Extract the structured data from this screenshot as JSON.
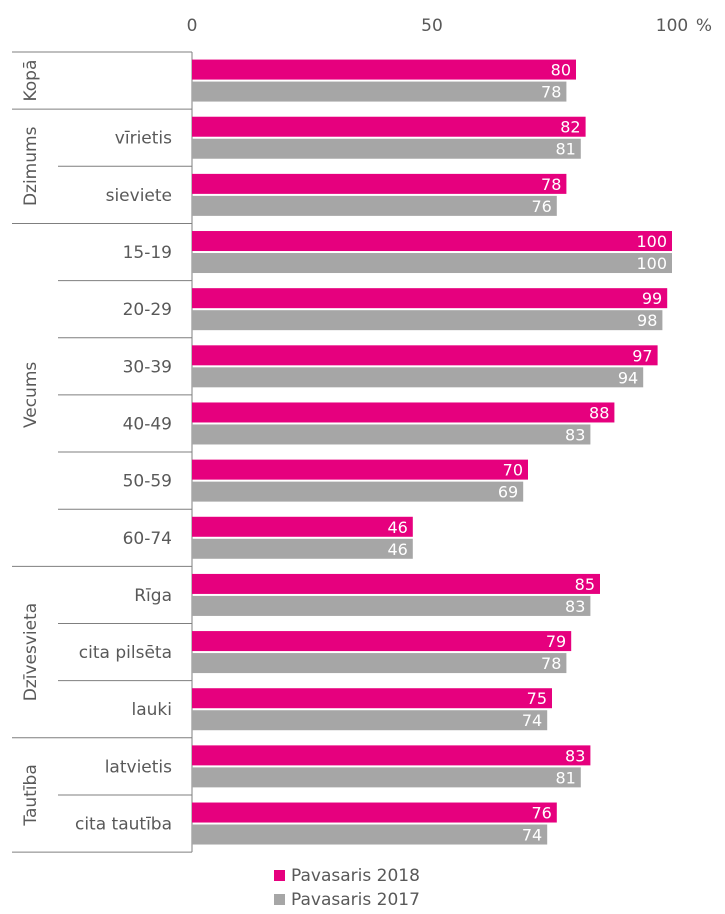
{
  "chart_data": {
    "type": "bar",
    "orientation": "horizontal",
    "unit_label": "%",
    "xlim": [
      0,
      100
    ],
    "ticks": [
      0,
      50,
      100
    ],
    "groups": [
      {
        "name": "Kopā",
        "categories": [
          ""
        ]
      },
      {
        "name": "Dzimums",
        "categories": [
          "vīrietis",
          "sieviete"
        ]
      },
      {
        "name": "Vecums",
        "categories": [
          "15-19",
          "20-29",
          "30-39",
          "40-49",
          "50-59",
          "60-74"
        ]
      },
      {
        "name": "Dzīvesvieta",
        "categories": [
          "Rīga",
          "cita pilsēta",
          "lauki"
        ]
      },
      {
        "name": "Tautība",
        "categories": [
          "latvietis",
          "cita tautība"
        ]
      }
    ],
    "series": [
      {
        "name": "Pavasaris 2018",
        "color": "#e6007e",
        "values": [
          80,
          82,
          78,
          100,
          99,
          97,
          88,
          70,
          46,
          85,
          79,
          75,
          83,
          76
        ]
      },
      {
        "name": "Pavasaris 2017",
        "color": "#a6a6a6",
        "values": [
          78,
          81,
          76,
          100,
          98,
          94,
          83,
          69,
          46,
          83,
          78,
          74,
          81,
          74
        ]
      }
    ],
    "legend_position": "bottom",
    "grid": false
  }
}
